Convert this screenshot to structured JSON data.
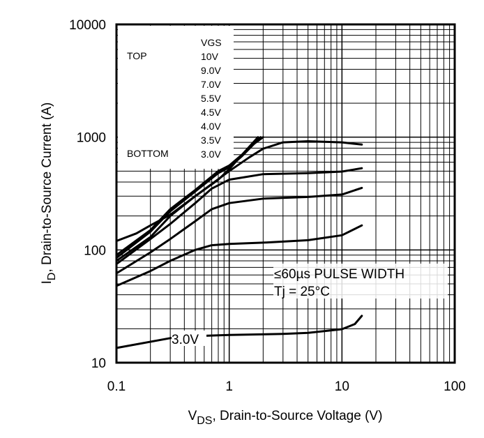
{
  "chart_data": {
    "type": "line",
    "xscale": "log",
    "yscale": "log",
    "xlim": [
      0.1,
      100
    ],
    "ylim": [
      10,
      10000
    ],
    "xlabel_main": "V",
    "xlabel_sub": "DS",
    "xlabel_rest": ", Drain-to-Source Voltage (V)",
    "ylabel_main": "I",
    "ylabel_sub": "D",
    "ylabel_rest": ", Drain-to-Source Current (A)",
    "xticks": [
      "0.1",
      "1",
      "10",
      "100"
    ],
    "yticks": [
      "10",
      "100",
      "1000",
      "10000"
    ],
    "grid": true,
    "legend": {
      "header": "VGS",
      "top_label": "TOP",
      "bottom_label": "BOTTOM",
      "entries": [
        "10V",
        "9.0V",
        "7.0V",
        "5.5V",
        "4.5V",
        "4.0V",
        "3.5V",
        "3.0V"
      ],
      "placement": "top-left"
    },
    "annotations": {
      "pulse": "≤60µs PULSE WIDTH",
      "temp": "Tj = 25°C",
      "curve_label": "3.0V"
    },
    "series": [
      {
        "name": "10V",
        "x": [
          0.1,
          0.15,
          0.2,
          0.3,
          0.5,
          0.8,
          1.0,
          1.2,
          1.6,
          2.0
        ],
        "y": [
          120,
          140,
          165,
          205,
          300,
          420,
          520,
          640,
          850,
          1000
        ]
      },
      {
        "name": "9.0V",
        "x": [
          0.1,
          0.2,
          0.3,
          0.5,
          0.8,
          1.0,
          1.3,
          1.8
        ],
        "y": [
          90,
          150,
          230,
          340,
          500,
          560,
          700,
          1000
        ]
      },
      {
        "name": "7.0V",
        "x": [
          0.1,
          0.2,
          0.3,
          0.5,
          0.8,
          1.0,
          1.3,
          1.9
        ],
        "y": [
          85,
          145,
          220,
          330,
          480,
          540,
          680,
          1000
        ]
      },
      {
        "name": "5.5V",
        "x": [
          0.1,
          0.2,
          0.3,
          0.5,
          1.0,
          1.5,
          2.0,
          3.0,
          5.0,
          10,
          15
        ],
        "y": [
          80,
          130,
          200,
          300,
          500,
          660,
          790,
          900,
          920,
          900,
          860
        ]
      },
      {
        "name": "4.5V",
        "x": [
          0.1,
          0.2,
          0.3,
          0.5,
          0.7,
          1.0,
          2.0,
          5.0,
          10,
          15
        ],
        "y": [
          75,
          125,
          170,
          260,
          350,
          420,
          470,
          480,
          495,
          530
        ]
      },
      {
        "name": "4.0V",
        "x": [
          0.1,
          0.2,
          0.3,
          0.5,
          0.7,
          1.0,
          2.0,
          5.0,
          10,
          15
        ],
        "y": [
          62,
          95,
          125,
          180,
          230,
          260,
          285,
          295,
          310,
          355
        ]
      },
      {
        "name": "3.5V",
        "x": [
          0.1,
          0.2,
          0.3,
          0.5,
          0.7,
          1.0,
          2.0,
          5.0,
          10,
          15
        ],
        "y": [
          48,
          65,
          80,
          100,
          110,
          113,
          116,
          122,
          135,
          165
        ]
      },
      {
        "name": "3.0V",
        "x": [
          0.1,
          0.3,
          0.5,
          1.0,
          3.0,
          5.0,
          10,
          13,
          15
        ],
        "y": [
          13.5,
          16.5,
          17.2,
          17.6,
          18.0,
          18.4,
          19.8,
          22,
          26
        ]
      }
    ]
  }
}
